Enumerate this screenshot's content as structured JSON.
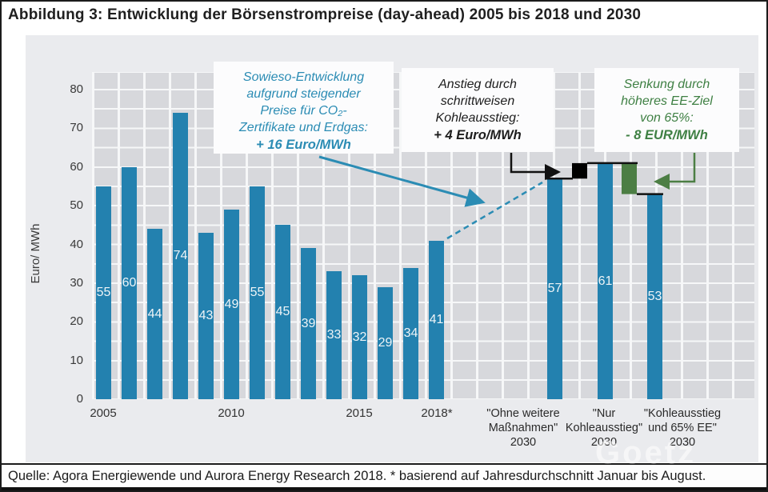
{
  "figure": {
    "title": "Abbildung 3: Entwicklung der Börsenstrompreise (day-ahead) 2005 bis 2018 und 2030",
    "source_note": "Quelle: Agora Energiewende und Aurora Energy Research 2018. * basierend auf Jahresdurchschnitt Januar bis August.",
    "watermark": "Goetz"
  },
  "annotations": {
    "sowieso": {
      "lines": [
        "Sowieso-Entwicklung",
        "aufgrund steigender",
        "Preise für CO₂-",
        "Zertifikate und Erdgas:"
      ],
      "value": "+ 16 Euro/MWh",
      "color": "#2b8cb4"
    },
    "kohle": {
      "lines": [
        "Anstieg durch",
        "schrittweisen",
        "Kohleausstieg:"
      ],
      "value": "+ 4 Euro/MWh",
      "color": "#1d1d1d"
    },
    "ee": {
      "lines": [
        "Senkung durch",
        "höheres EE-Ziel",
        "von 65%:"
      ],
      "value": "- 8 EUR/MWh",
      "color": "#3f8044"
    }
  },
  "chart_data": {
    "type": "bar",
    "title": "Entwicklung der Börsenstrompreise (day-ahead) 2005 bis 2018 und 2030",
    "ylabel": "Euro/ MWh",
    "ylim": [
      0,
      80
    ],
    "yticks": [
      0,
      10,
      20,
      30,
      40,
      50,
      60,
      70,
      80
    ],
    "grid": true,
    "bar_color": "#2381af",
    "historical": {
      "years": [
        2005,
        2006,
        2007,
        2008,
        2009,
        2010,
        2011,
        2012,
        2013,
        2014,
        2015,
        2016,
        2017,
        2018
      ],
      "values": [
        55,
        60,
        44,
        74,
        43,
        49,
        55,
        45,
        39,
        33,
        32,
        29,
        34,
        41
      ],
      "x_tick_labels": [
        "2005",
        "2010",
        "2015",
        "2018*"
      ]
    },
    "scenarios_2030": [
      {
        "label_lines": [
          "\"Ohne weitere",
          "Maßnahmen\"",
          "2030"
        ],
        "value": 57
      },
      {
        "label_lines": [
          "\"Nur",
          "Kohleausstieg\"",
          "2030"
        ],
        "value": 61
      },
      {
        "label_lines": [
          "\"Kohleausstieg",
          "und 65% EE\"",
          "2030"
        ],
        "value": 53
      }
    ],
    "waterfall_steps": [
      {
        "from": 57,
        "to": 61,
        "delta": "+4",
        "color": "#000000"
      },
      {
        "from": 61,
        "to": 53,
        "delta": "-8",
        "color": "#4c7e44"
      }
    ]
  }
}
